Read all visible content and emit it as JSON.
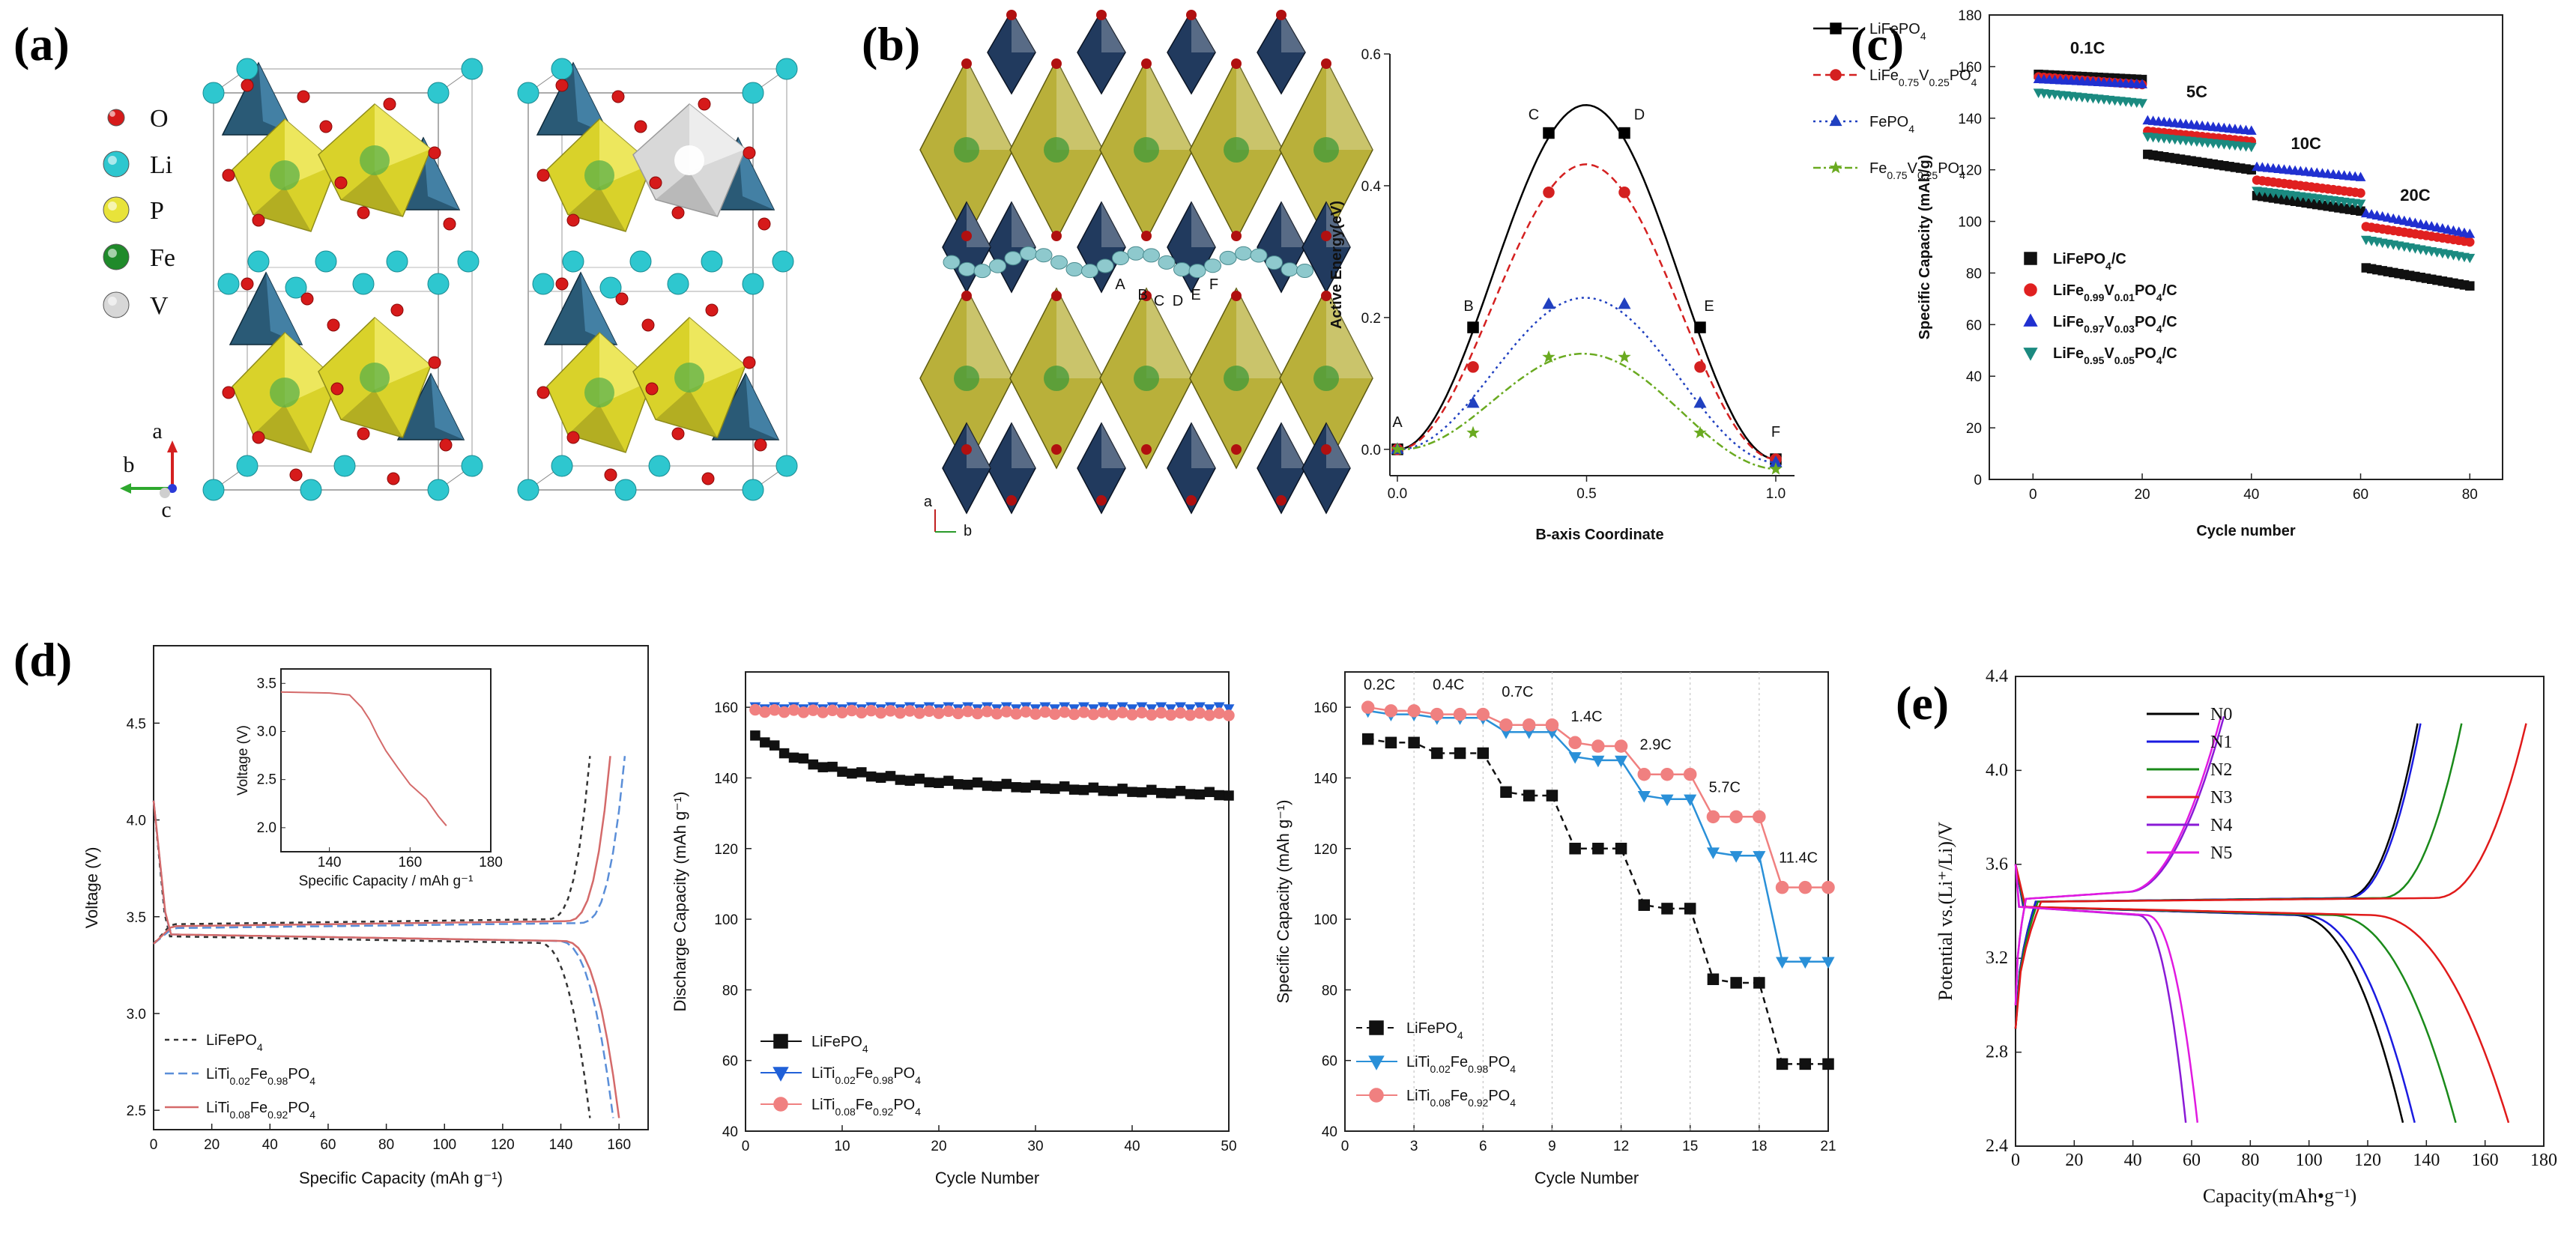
{
  "panel_labels": [
    "(a)",
    "(b)",
    "(c)",
    "(d)",
    "(e)"
  ],
  "panel_a": {
    "legend": [
      {
        "label": "O",
        "color": "#d61a1a"
      },
      {
        "label": "Li",
        "color": "#2ec7cf"
      },
      {
        "label": "P",
        "color": "#e8e33a"
      },
      {
        "label": "Fe",
        "color": "#1f8a2a"
      },
      {
        "label": "V",
        "color": "#d7d7d7"
      }
    ],
    "axes_labels": [
      "a",
      "b",
      "c"
    ]
  },
  "panel_b_structure": {
    "path_labels": [
      "A",
      "B",
      "C",
      "D",
      "E",
      "F"
    ],
    "axes_labels": [
      "a",
      "b"
    ]
  },
  "chart_data": [
    {
      "id": "b-energy",
      "type": "line",
      "title": "",
      "xlabel": "B-axis Coordinate",
      "ylabel": "Active Energy(eV)",
      "xlim": [
        0,
        1
      ],
      "ylim": [
        -0.04,
        0.6
      ],
      "xticks": [
        "0.0",
        "0.5",
        "1.0"
      ],
      "yticks": [
        "0.0",
        "0.2",
        "0.4",
        "0.6"
      ],
      "point_labels": [
        "A",
        "B",
        "C",
        "D",
        "E",
        "F"
      ],
      "x": [
        0,
        0.2,
        0.4,
        0.6,
        0.8,
        1.0
      ],
      "series": [
        {
          "name": "LiFePO4",
          "sub": "4",
          "base": "LiFePO",
          "peak": 0.53,
          "color": "#000000",
          "dash": "",
          "marker": "square",
          "values": [
            0,
            0.185,
            0.48,
            0.48,
            0.185,
            -0.015
          ]
        },
        {
          "name": "LiFe0.75V0.25PO4",
          "base": "LiFe",
          "peak": 0.44,
          "color": "#d42020",
          "dash": "10,6",
          "marker": "circle",
          "values": [
            0,
            0.125,
            0.39,
            0.39,
            0.125,
            -0.015
          ]
        },
        {
          "name": "FePO4",
          "base": "FePO",
          "peak": 0.24,
          "color": "#2040c0",
          "dash": "3,5",
          "marker": "triangle",
          "values": [
            0,
            0.07,
            0.22,
            0.22,
            0.07,
            -0.02
          ]
        },
        {
          "name": "Fe0.75V0.25PO4",
          "base": "Fe",
          "peak": 0.16,
          "color": "#6aaa20",
          "dash": "10,4,3,4",
          "marker": "star",
          "values": [
            0,
            0.025,
            0.14,
            0.14,
            0.025,
            -0.03
          ]
        }
      ]
    },
    {
      "id": "c-rate",
      "type": "scatter",
      "xlabel": "Cycle number",
      "ylabel": "Specific Capacity (mAh/g)",
      "xlim": [
        -8,
        86
      ],
      "ylim": [
        0,
        180
      ],
      "xticks": [
        "0",
        "20",
        "40",
        "60",
        "80"
      ],
      "yticks": [
        "0",
        "20",
        "40",
        "60",
        "80",
        "100",
        "120",
        "140",
        "160",
        "180"
      ],
      "rate_labels": [
        "0.1C",
        "5C",
        "10C",
        "20C"
      ],
      "series": [
        {
          "name": "LiFePO4/C",
          "color": "#111111",
          "marker": "square",
          "segments": [
            [
              157,
              155
            ],
            [
              126,
              120
            ],
            [
              110,
              104
            ],
            [
              82,
              75
            ]
          ]
        },
        {
          "name": "LiFe0.99V0.01PO4/C",
          "color": "#e02020",
          "marker": "circle",
          "segments": [
            [
              156,
              153
            ],
            [
              135,
              131
            ],
            [
              116,
              111
            ],
            [
              98,
              92
            ]
          ]
        },
        {
          "name": "LiFe0.97V0.03PO4/C",
          "color": "#2030d0",
          "marker": "triangle",
          "segments": [
            [
              155,
              153
            ],
            [
              139,
              135
            ],
            [
              121,
              117
            ],
            [
              103,
              95
            ]
          ]
        },
        {
          "name": "LiFe0.95V0.05PO4/C",
          "color": "#1b8a80",
          "marker": "triangle-down",
          "segments": [
            [
              150,
              146
            ],
            [
              133,
              129
            ],
            [
              112,
              107
            ],
            [
              93,
              86
            ]
          ]
        }
      ]
    },
    {
      "id": "d1-voltage",
      "type": "line",
      "xlabel": "Specific Capacity  (mAh g⁻¹)",
      "ylabel": "Voltage (V)",
      "xlim": [
        0,
        170
      ],
      "ylim": [
        2.4,
        4.9
      ],
      "xticks": [
        "0",
        "20",
        "40",
        "60",
        "80",
        "100",
        "120",
        "140",
        "160"
      ],
      "yticks": [
        "2.5",
        "3.0",
        "3.5",
        "4.0",
        "4.5"
      ],
      "series": [
        {
          "name": "LiFePO4",
          "color": "#333333",
          "dash": "6,6",
          "charge_end": 150,
          "discharge_end": 150,
          "plateau_c": 3.46,
          "plateau_d": 3.4
        },
        {
          "name": "LiTi0.02Fe0.98PO4",
          "color": "#5a8ed8",
          "dash": "12,6",
          "charge_end": 162,
          "discharge_end": 158,
          "plateau_c": 3.44,
          "plateau_d": 3.41
        },
        {
          "name": "LiTi0.08Fe0.92PO4",
          "color": "#d46a6a",
          "dash": "",
          "charge_end": 157,
          "discharge_end": 160,
          "plateau_c": 3.45,
          "plateau_d": 3.41
        }
      ],
      "inset": {
        "xlabel": "Specific Capacity / mAh g⁻¹",
        "ylabel": "Voltage (V)",
        "xticks": [
          "140",
          "160",
          "180"
        ],
        "yticks": [
          "2.0",
          "2.5",
          "3.0",
          "3.5"
        ]
      }
    },
    {
      "id": "d2-cycling",
      "type": "scatter",
      "xlabel": "Cycle Number",
      "ylabel": "Discharge Capacity  (mAh g⁻¹)",
      "xlim": [
        0,
        50
      ],
      "ylim": [
        40,
        170
      ],
      "xticks": [
        "0",
        "10",
        "20",
        "30",
        "40",
        "50"
      ],
      "yticks": [
        "40",
        "60",
        "80",
        "100",
        "120",
        "140",
        "160"
      ],
      "series": [
        {
          "name": "LiFePO4",
          "color": "#111111",
          "marker": "square",
          "start": 152,
          "end": 135
        },
        {
          "name": "LiTi0.02Fe0.98PO4",
          "color": "#2060d8",
          "marker": "triangle-down",
          "start": 160,
          "end": 160
        },
        {
          "name": "LiTi0.08Fe0.92PO4",
          "color": "#f08080",
          "marker": "circle",
          "start": 159,
          "end": 158
        }
      ]
    },
    {
      "id": "d3-rate",
      "type": "line",
      "xlabel": "Cycle Number",
      "ylabel": "Specific Capacity  (mAh g⁻¹)",
      "xlim": [
        0,
        21
      ],
      "ylim": [
        40,
        170
      ],
      "xticks": [
        "0",
        "3",
        "6",
        "9",
        "12",
        "15",
        "18",
        "21"
      ],
      "yticks": [
        "40",
        "60",
        "80",
        "100",
        "120",
        "140",
        "160"
      ],
      "rate_labels": [
        "0.2C",
        "0.4C",
        "0.7C",
        "1.4C",
        "2.9C",
        "5.7C",
        "11.4C"
      ],
      "series": [
        {
          "name": "LiFePO4",
          "color": "#111111",
          "marker": "square",
          "values": [
            151,
            150,
            150,
            147,
            147,
            147,
            136,
            135,
            135,
            120,
            120,
            120,
            104,
            103,
            103,
            83,
            82,
            82,
            59,
            59,
            59
          ]
        },
        {
          "name": "LiTi0.02Fe0.98PO4",
          "color": "#2a90d8",
          "marker": "triangle-down",
          "values": [
            159,
            158,
            158,
            157,
            157,
            157,
            153,
            153,
            153,
            146,
            145,
            145,
            135,
            134,
            134,
            119,
            118,
            118,
            88,
            88,
            88
          ]
        },
        {
          "name": "LiTi0.08Fe0.92PO4",
          "color": "#f08080",
          "marker": "circle",
          "values": [
            160,
            159,
            159,
            158,
            158,
            158,
            155,
            155,
            155,
            150,
            149,
            149,
            141,
            141,
            141,
            129,
            129,
            129,
            109,
            109,
            109
          ]
        }
      ]
    },
    {
      "id": "e-potential",
      "type": "line",
      "xlabel": "Capacity(mAh•g⁻¹)",
      "ylabel": "Potential vs.(Li⁺/Li)/V",
      "xlim": [
        0,
        180
      ],
      "ylim": [
        2.4,
        4.4
      ],
      "xticks": [
        "0",
        "20",
        "40",
        "60",
        "80",
        "100",
        "120",
        "140",
        "160",
        "180"
      ],
      "yticks": [
        "2.4",
        "2.8",
        "3.2",
        "3.6",
        "4.0",
        "4.4"
      ],
      "series": [
        {
          "name": "N0",
          "color": "#000000",
          "charge_end": 137,
          "discharge_end": 132
        },
        {
          "name": "N1",
          "color": "#1a1ae0",
          "charge_end": 138,
          "discharge_end": 136
        },
        {
          "name": "N2",
          "color": "#1a8a1a",
          "charge_end": 152,
          "discharge_end": 150
        },
        {
          "name": "N3",
          "color": "#e01a1a",
          "charge_end": 174,
          "discharge_end": 168
        },
        {
          "name": "N4",
          "color": "#8a1ad6",
          "charge_end": 71,
          "discharge_end": 58
        },
        {
          "name": "N5",
          "color": "#e01ae0",
          "charge_end": 70,
          "discharge_end": 62
        }
      ]
    }
  ]
}
